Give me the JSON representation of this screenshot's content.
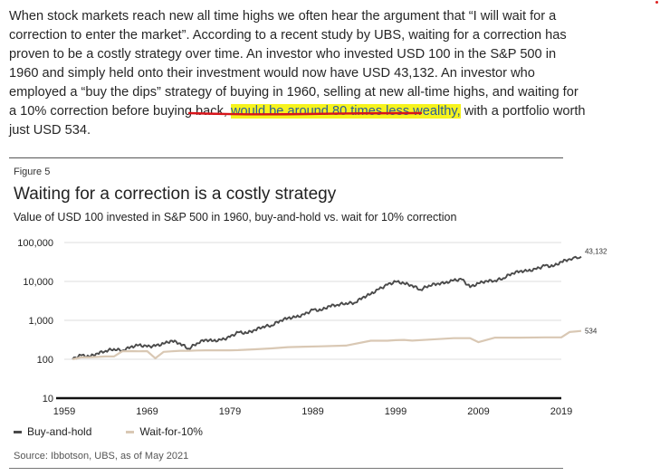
{
  "article": {
    "paragraph_before": "When stock markets reach new all time highs we often hear the argument that “I will wait for a correction to enter the market”. According to a recent study by UBS, waiting for a correction has proven to be a costly strategy over time. An investor who invested USD 100 in the S&P 500 in 1960 and simply held onto their investment would now have USD 43,132. An investor who employed a “buy the dips” strategy of buying in 1960, selling at new all-time highs, and waiting for a 10% correction before buying back, ",
    "highlighted": "would be around 80 times less wealthy,",
    "paragraph_after": " with a portfolio worth just USD 534.",
    "highlight_color": "#f6f31d",
    "underline_color": "#d8141a"
  },
  "figure": {
    "label": "Figure 5",
    "source": "Source: Ibbotson, UBS, as of May 2021"
  },
  "chart_data": {
    "type": "line",
    "title": "Waiting for a correction is a costly strategy",
    "subtitle": "Value of USD 100 invested in S&P 500 in 1960, buy-and-hold vs. wait for 10% correction",
    "y_scale": "log",
    "ylim": [
      10,
      100000
    ],
    "y_ticks": [
      "100,000",
      "10,000",
      "1,000",
      "100",
      "10"
    ],
    "y_tick_values": [
      100000,
      10000,
      1000,
      100,
      10
    ],
    "xlim": [
      1959,
      2019
    ],
    "x_ticks": [
      "1959",
      "1969",
      "1979",
      "1989",
      "1999",
      "2009",
      "2019"
    ],
    "legend_position": "bottom-left",
    "series": [
      {
        "name": "Buy-and-hold",
        "color": "#4a4a4a",
        "end_label": "43,132",
        "x": [
          1960,
          1961,
          1962,
          1963,
          1964,
          1965,
          1966,
          1967,
          1968,
          1969,
          1970,
          1971,
          1972,
          1973,
          1974,
          1975,
          1976,
          1977,
          1978,
          1979,
          1980,
          1981,
          1982,
          1983,
          1984,
          1985,
          1986,
          1987,
          1988,
          1989,
          1990,
          1991,
          1992,
          1993,
          1994,
          1995,
          1996,
          1997,
          1998,
          1999,
          2000,
          2001,
          2002,
          2003,
          2004,
          2005,
          2006,
          2007,
          2008,
          2009,
          2010,
          2011,
          2012,
          2013,
          2014,
          2015,
          2016,
          2017,
          2018,
          2019,
          2020,
          2021.4
        ],
        "values": [
          100,
          127,
          116,
          142,
          165,
          185,
          167,
          207,
          230,
          211,
          219,
          251,
          299,
          255,
          188,
          258,
          318,
          296,
          314,
          372,
          493,
          468,
          569,
          697,
          740,
          975,
          1150,
          1210,
          1410,
          1860,
          1800,
          2340,
          2520,
          2780,
          2810,
          3860,
          4750,
          6330,
          8140,
          9850,
          8950,
          7890,
          6150,
          7910,
          8770,
          9200,
          10650,
          11240,
          7080,
          8950,
          10290,
          10510,
          12190,
          16130,
          18340,
          18590,
          20810,
          25350,
          24240,
          31880,
          37740,
          43132
        ]
      },
      {
        "name": "Wait-for-10%",
        "color": "#d9c8b4",
        "end_label": "534",
        "x": [
          1960,
          1961,
          1962,
          1963,
          1964,
          1965,
          1966,
          1967,
          1968,
          1969,
          1970,
          1971,
          1972,
          1973,
          1974,
          1975,
          1976,
          1977,
          1978,
          1979,
          1980,
          1982,
          1984,
          1986,
          1988,
          1990,
          1993,
          1996,
          1998,
          1999,
          2000,
          2001,
          2003,
          2006,
          2008,
          2009,
          2011,
          2014,
          2017,
          2019,
          2020,
          2021.4
        ],
        "values": [
          100,
          112,
          112,
          115,
          118,
          118,
          160,
          162,
          160,
          162,
          106,
          155,
          160,
          165,
          165,
          168,
          170,
          170,
          170,
          170,
          172,
          180,
          190,
          205,
          210,
          215,
          225,
          300,
          300,
          310,
          315,
          302,
          320,
          348,
          348,
          275,
          360,
          360,
          365,
          365,
          500,
          534
        ]
      }
    ]
  }
}
